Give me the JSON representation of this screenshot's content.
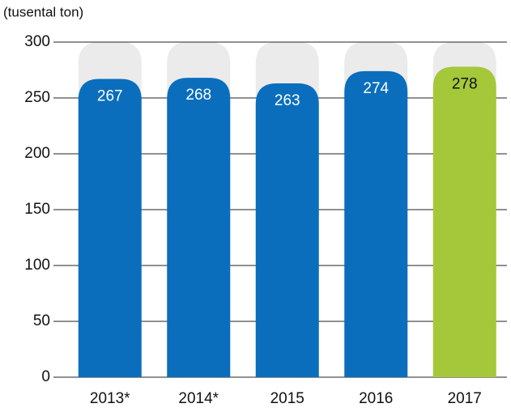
{
  "chart_data": {
    "type": "bar",
    "axis_label": "(tusental ton)",
    "categories": [
      "2013*",
      "2014*",
      "2015",
      "2016",
      "2017"
    ],
    "values": [
      267,
      268,
      263,
      274,
      278
    ],
    "colors": [
      "#0a6ebd",
      "#0a6ebd",
      "#0a6ebd",
      "#0a6ebd",
      "#a5c83a"
    ],
    "value_label_colors": [
      "#ffffff",
      "#ffffff",
      "#ffffff",
      "#ffffff",
      "#111111"
    ],
    "background_color": "#ebebeb",
    "ylim": [
      0,
      300
    ],
    "yticks": [
      0,
      50,
      100,
      150,
      200,
      250,
      300
    ],
    "grid": true
  }
}
